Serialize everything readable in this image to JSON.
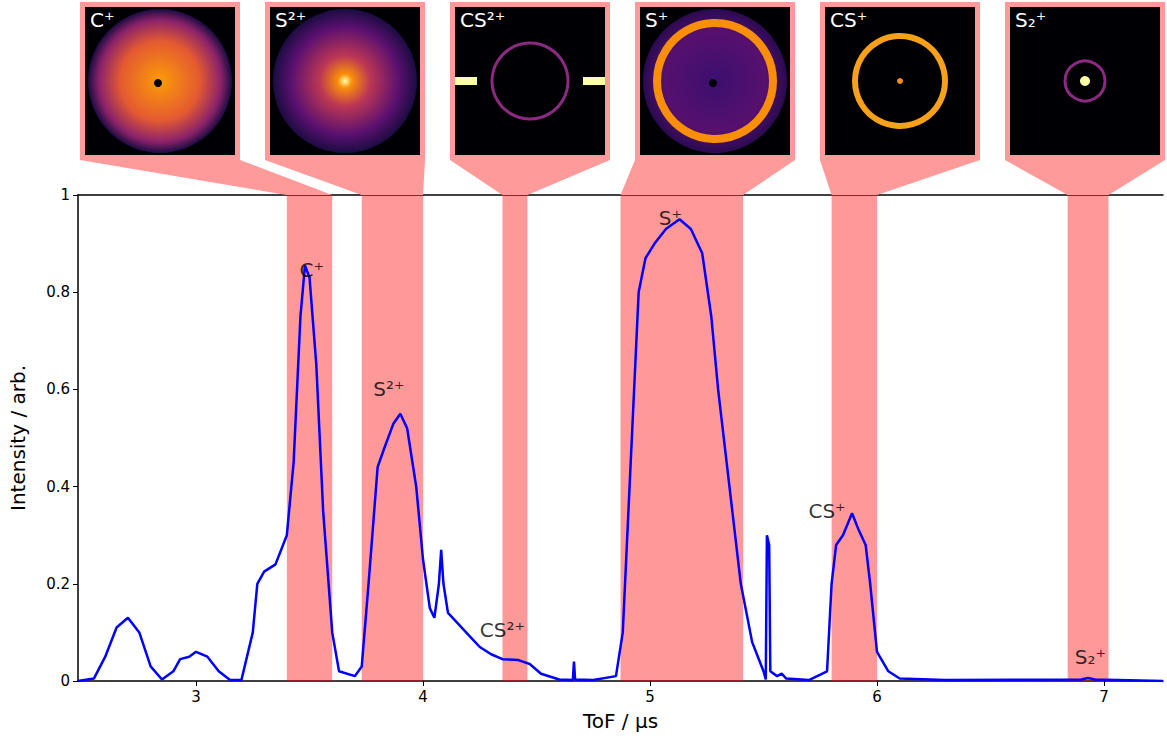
{
  "chart_data": {
    "type": "line",
    "xlabel": "ToF / μs",
    "ylabel": "Intensity / arb.",
    "color": "#0000ff",
    "xlim": [
      2.48,
      7.26
    ],
    "xticks": [
      3,
      4,
      5,
      6,
      7
    ],
    "ylim": [
      0,
      1
    ],
    "yticks": [
      0,
      0.2,
      0.4,
      0.6,
      0.8,
      1
    ],
    "x": [
      2.48,
      2.55,
      2.6,
      2.65,
      2.7,
      2.75,
      2.8,
      2.85,
      2.9,
      2.93,
      2.97,
      3.0,
      3.05,
      3.1,
      3.15,
      3.2,
      3.25,
      3.27,
      3.3,
      3.35,
      3.4,
      3.43,
      3.46,
      3.48,
      3.5,
      3.53,
      3.56,
      3.6,
      3.63,
      3.7,
      3.73,
      3.76,
      3.8,
      3.83,
      3.87,
      3.9,
      3.93,
      3.97,
      4.0,
      4.03,
      4.05,
      4.07,
      4.08,
      4.09,
      4.11,
      4.15,
      4.2,
      4.25,
      4.3,
      4.35,
      4.42,
      4.47,
      4.52,
      4.6,
      4.66,
      4.665,
      4.67,
      4.75,
      4.85,
      4.88,
      4.92,
      4.95,
      4.98,
      5.02,
      5.07,
      5.13,
      5.18,
      5.23,
      5.27,
      5.3,
      5.35,
      5.4,
      5.45,
      5.5,
      5.51,
      5.515,
      5.525,
      5.53,
      5.56,
      5.58,
      5.6,
      5.7,
      5.78,
      5.8,
      5.82,
      5.85,
      5.89,
      5.92,
      5.95,
      5.97,
      6.0,
      6.05,
      6.1,
      6.3,
      6.9,
      6.93,
      6.96,
      7.26
    ],
    "values": [
      0.0,
      0.005,
      0.05,
      0.11,
      0.13,
      0.1,
      0.03,
      0.003,
      0.02,
      0.045,
      0.05,
      0.06,
      0.05,
      0.02,
      0.002,
      0.002,
      0.1,
      0.2,
      0.225,
      0.24,
      0.3,
      0.45,
      0.75,
      0.855,
      0.83,
      0.65,
      0.35,
      0.1,
      0.02,
      0.01,
      0.03,
      0.2,
      0.44,
      0.48,
      0.53,
      0.55,
      0.52,
      0.4,
      0.25,
      0.15,
      0.13,
      0.2,
      0.27,
      0.2,
      0.14,
      0.12,
      0.095,
      0.07,
      0.055,
      0.045,
      0.043,
      0.035,
      0.015,
      0.003,
      0.002,
      0.04,
      0.003,
      0.002,
      0.01,
      0.1,
      0.5,
      0.8,
      0.87,
      0.9,
      0.93,
      0.95,
      0.93,
      0.88,
      0.75,
      0.6,
      0.4,
      0.2,
      0.08,
      0.02,
      0.003,
      0.3,
      0.28,
      0.02,
      0.01,
      0.015,
      0.005,
      0.002,
      0.02,
      0.2,
      0.28,
      0.3,
      0.345,
      0.31,
      0.28,
      0.2,
      0.06,
      0.02,
      0.005,
      0.002,
      0.003,
      0.006,
      0.003,
      0.0
    ],
    "annotations": [
      {
        "text": "C⁺",
        "x": 3.51,
        "y": 0.845
      },
      {
        "text": "S²⁺",
        "x": 3.85,
        "y": 0.6
      },
      {
        "text": "CS²⁺",
        "x": 4.35,
        "y": 0.105
      },
      {
        "text": "S⁺",
        "x": 5.09,
        "y": 0.953
      },
      {
        "text": "CS⁺",
        "x": 5.78,
        "y": 0.35
      },
      {
        "text": "S₂⁺",
        "x": 6.94,
        "y": 0.05
      }
    ],
    "regions": [
      {
        "start": 3.4,
        "end": 3.6,
        "label": "C⁺"
      },
      {
        "start": 3.73,
        "end": 4.0,
        "label": "S²⁺"
      },
      {
        "start": 4.35,
        "end": 4.46,
        "label": "CS²⁺"
      },
      {
        "start": 4.87,
        "end": 5.41,
        "label": "S⁺"
      },
      {
        "start": 5.8,
        "end": 6.0,
        "label": "CS⁺"
      },
      {
        "start": 6.84,
        "end": 7.02,
        "label": "S₂⁺"
      }
    ]
  }
}
